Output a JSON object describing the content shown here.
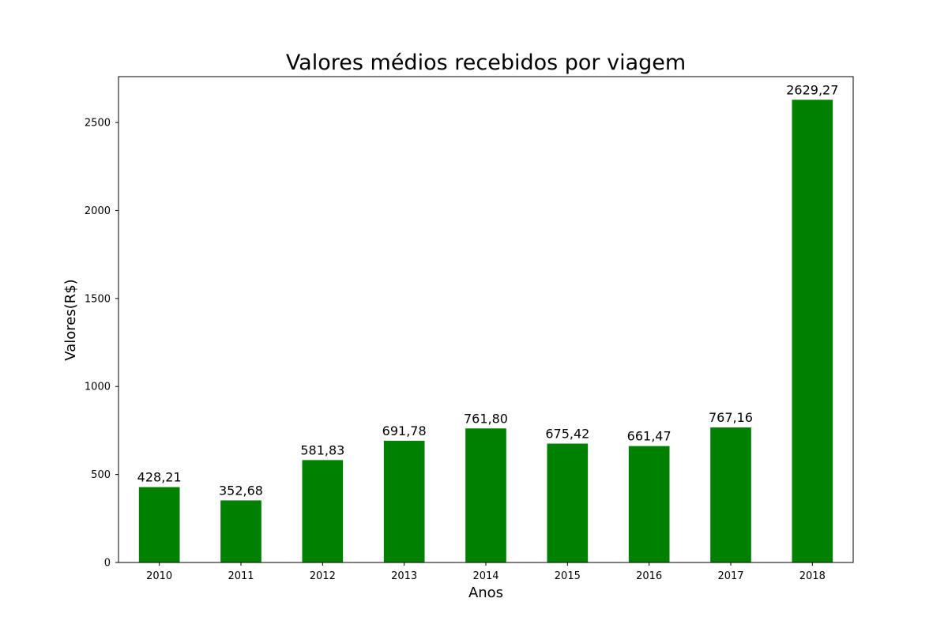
{
  "chart_data": {
    "type": "bar",
    "title": "Valores médios recebidos por viagem",
    "xlabel": "Anos",
    "ylabel": "Valores(R$)",
    "categories": [
      "2010",
      "2011",
      "2012",
      "2013",
      "2014",
      "2015",
      "2016",
      "2017",
      "2018"
    ],
    "values": [
      428.21,
      352.68,
      581.83,
      691.78,
      761.8,
      675.42,
      661.47,
      767.16,
      2629.27
    ],
    "data_labels": [
      "428,21",
      "352,68",
      "581,83",
      "691,78",
      "761,80",
      "675,42",
      "661,47",
      "767,16",
      "2629,27"
    ],
    "ylim": [
      0,
      2760.7
    ],
    "yticks": [
      0,
      500,
      1000,
      1500,
      2000,
      2500
    ],
    "ytick_labels": [
      "0",
      "500",
      "1000",
      "1500",
      "2000",
      "2500"
    ],
    "grid": false,
    "bar_color": "#008000"
  }
}
